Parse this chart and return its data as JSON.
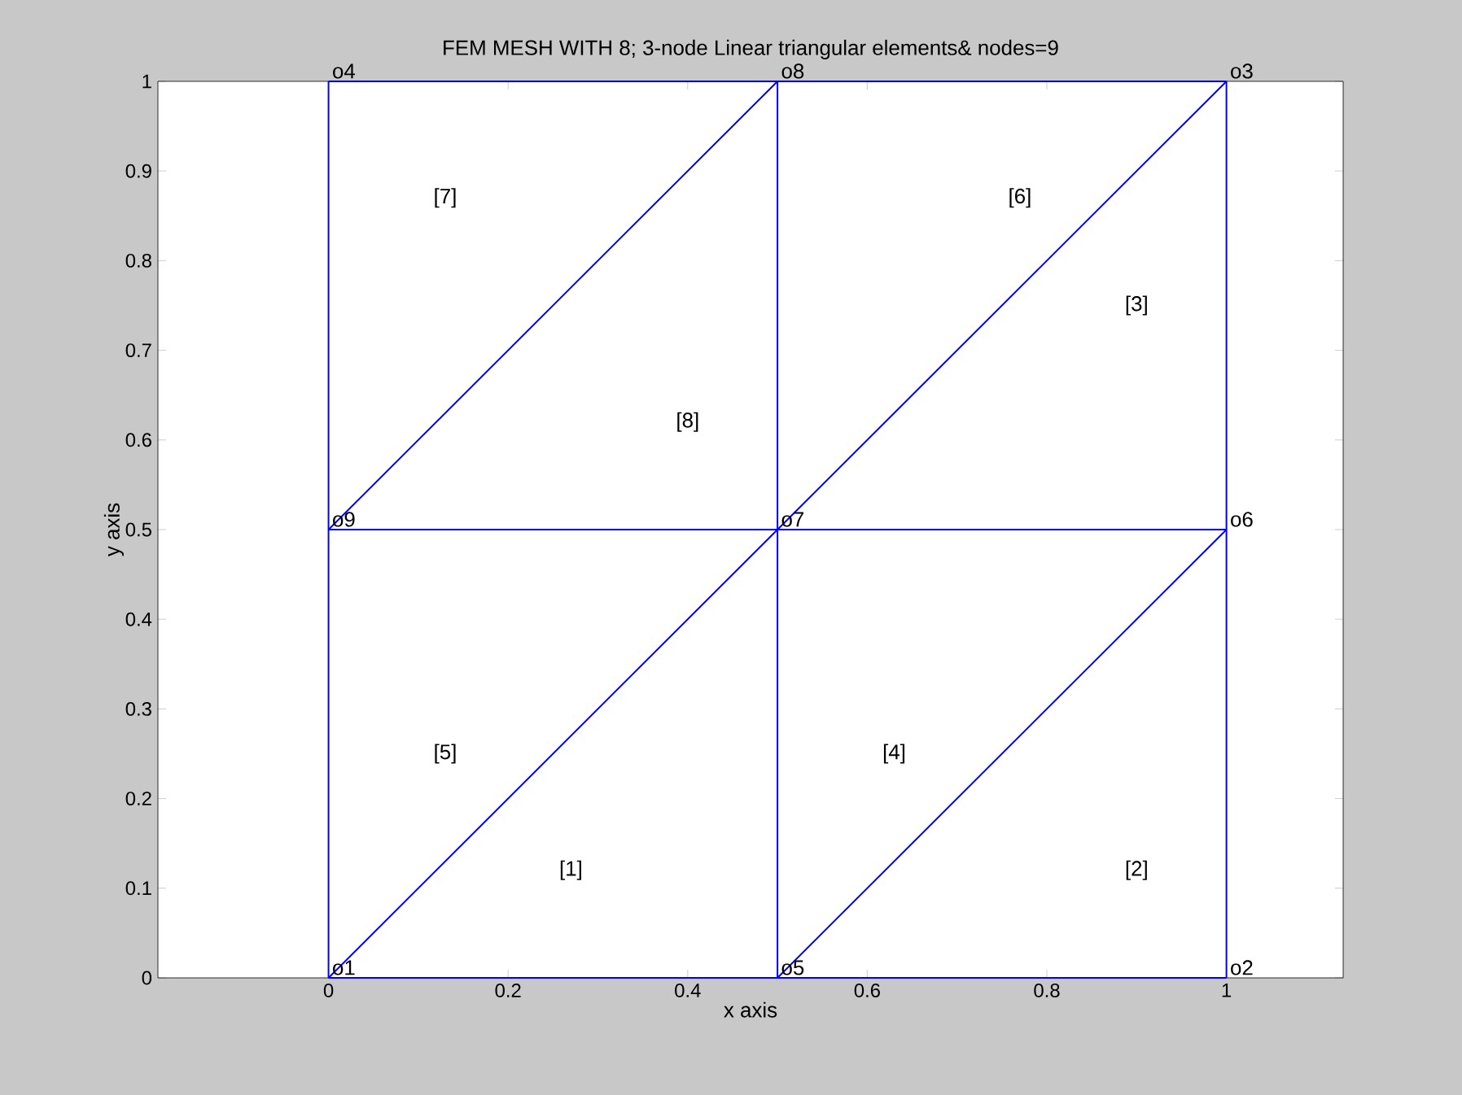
{
  "chart_data": {
    "type": "line",
    "title": "FEM MESH WITH  8; 3-node Linear triangular elements& nodes=9",
    "xlabel": "x axis",
    "ylabel": "y axis",
    "xlim": [
      -0.19,
      1.13
    ],
    "ylim": [
      0,
      1
    ],
    "xticks": [
      0,
      0.2,
      0.4,
      0.6,
      0.8,
      1
    ],
    "yticks": [
      0,
      0.1,
      0.2,
      0.3,
      0.4,
      0.5,
      0.6,
      0.7,
      0.8,
      0.9,
      1
    ],
    "series": [
      {
        "color": "#0000ff",
        "x": [
          0,
          0.5,
          1
        ],
        "values": [
          0,
          0,
          0
        ]
      },
      {
        "color": "#0000ff",
        "x": [
          0,
          0.5,
          1
        ],
        "values": [
          0.5,
          0.5,
          0.5
        ]
      },
      {
        "color": "#0000ff",
        "x": [
          0,
          0.5,
          1
        ],
        "values": [
          1,
          1,
          1
        ]
      },
      {
        "color": "#0000ff",
        "x": [
          0,
          0,
          0
        ],
        "values": [
          0,
          0.5,
          1
        ]
      },
      {
        "color": "#0000ff",
        "x": [
          0.5,
          0.5,
          0.5
        ],
        "values": [
          0,
          0.5,
          1
        ]
      },
      {
        "color": "#0000ff",
        "x": [
          1,
          1,
          1
        ],
        "values": [
          0,
          0.5,
          1
        ]
      },
      {
        "color": "#0000ff",
        "x": [
          0,
          0.5,
          1
        ],
        "values": [
          0,
          0.5,
          1
        ]
      },
      {
        "color": "#0000ff",
        "x": [
          0.5,
          1
        ],
        "values": [
          0,
          0.5
        ]
      },
      {
        "color": "#0000ff",
        "x": [
          0,
          0.5
        ],
        "values": [
          0.5,
          1
        ]
      }
    ],
    "annotations": [
      {
        "text": "o1",
        "x": 0,
        "y": 0
      },
      {
        "text": "o2",
        "x": 1,
        "y": 0
      },
      {
        "text": "o3",
        "x": 1,
        "y": 1
      },
      {
        "text": "o4",
        "x": 0,
        "y": 1
      },
      {
        "text": "o5",
        "x": 0.5,
        "y": 0
      },
      {
        "text": "o6",
        "x": 1,
        "y": 0.5
      },
      {
        "text": "o7",
        "x": 0.5,
        "y": 0.5
      },
      {
        "text": "o8",
        "x": 0.5,
        "y": 1
      },
      {
        "text": "o9",
        "x": 0,
        "y": 0.5
      },
      "[1]",
      "[2]",
      "[3]",
      "[4]",
      "[5]",
      "[6]",
      "[7]",
      "[8]"
    ]
  }
}
